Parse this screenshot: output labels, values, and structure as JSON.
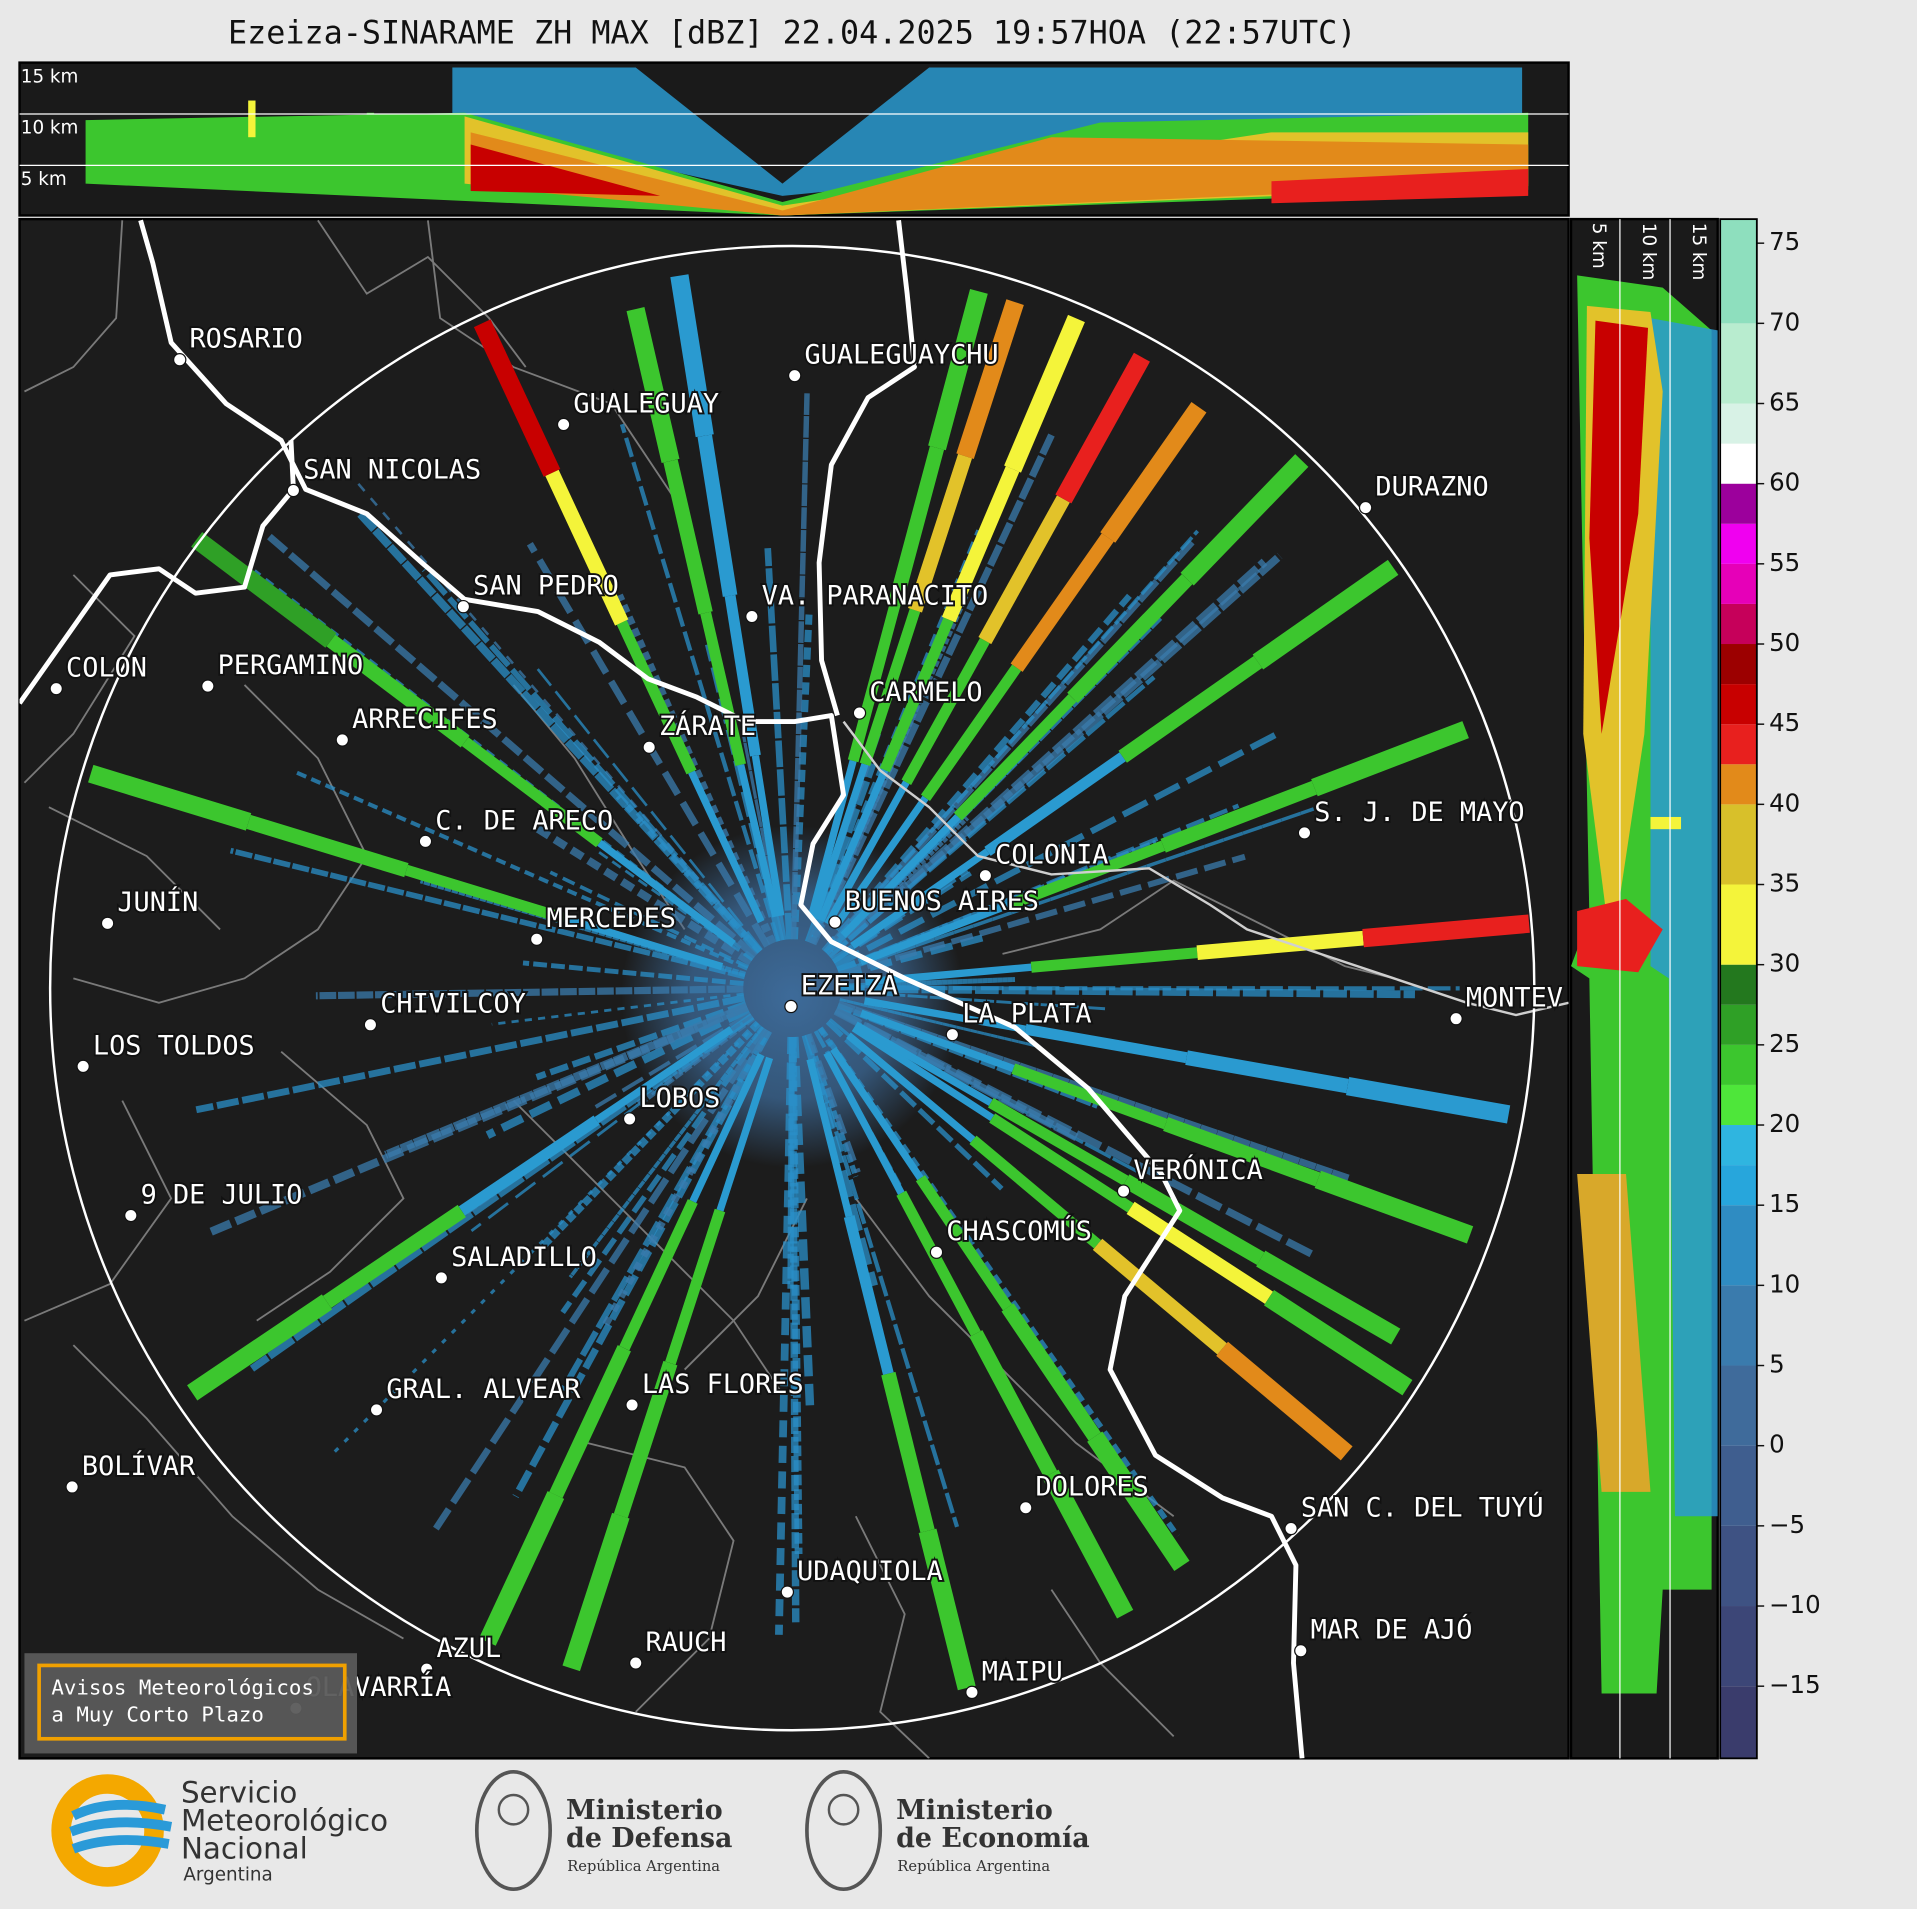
{
  "header": {
    "title": "Ezeiza-SINARAME ZH MAX [dBZ] 22.04.2025 19:57HOA (22:57UTC)"
  },
  "top_profile": {
    "height_labels": [
      "15 km",
      "10 km",
      "5 km"
    ]
  },
  "side_profile": {
    "height_labels": [
      "5 km",
      "10 km",
      "15 km"
    ]
  },
  "map": {
    "cities": [
      "ROSARIO",
      "GUALEGUAYCHU",
      "GUALEGUAY",
      "SAN NICOLAS",
      "DURAZNO",
      "SAN PEDRO",
      "VA. PARANACITO",
      "COLON",
      "PERGAMINO",
      "CARMELO",
      "ZÁRATE",
      "ARRECIFES",
      "S. J. DE MAYO",
      "C. DE ARECO",
      "COLONIA",
      "BUENOS AIRES",
      "JUNÍN",
      "MERCEDES",
      "EZEIZA",
      "MONTEV",
      "LA PLATA",
      "CHIVILCOY",
      "LOS TOLDOS",
      "LOBOS",
      "VERÓNICA",
      "9 DE JULIO",
      "CHASCOMÚS",
      "SALADILLO",
      "GRAL. ALVEAR",
      "LAS FLORES",
      "BOLÍVAR",
      "DOLORES",
      "SAN C. DEL TUYÚ",
      "UDAQUIOLA",
      "MAR DE AJÓ",
      "RAUCH",
      "AZUL",
      "OLAVARRÍA",
      "MAIPU"
    ]
  },
  "colorbar": {
    "lim": [
      -19.5,
      76.5
    ],
    "ticks": [
      75,
      70,
      65,
      60,
      55,
      50,
      45,
      40,
      35,
      30,
      25,
      20,
      15,
      10,
      5,
      0,
      {
        "value": -5,
        "label": "−5"
      },
      {
        "value": -10,
        "label": "−10"
      },
      {
        "value": -15,
        "label": "−15"
      }
    ],
    "colormap": [
      {
        "value": -20,
        "color": "#3a3c6c"
      },
      {
        "value": -15,
        "color": "#3c4677"
      },
      {
        "value": -10,
        "color": "#3e5283"
      },
      {
        "value": -5,
        "color": "#3f5e8f"
      },
      {
        "value": 0,
        "color": "#3f6b9b"
      },
      {
        "value": 5,
        "color": "#3a7bad"
      },
      {
        "value": 10,
        "color": "#2f8cc2"
      },
      {
        "value": 15,
        "color": "#27a6dc"
      },
      {
        "value": 17.5,
        "color": "#2fb5e0"
      },
      {
        "value": 20,
        "color": "#4ee63a"
      },
      {
        "value": 22.5,
        "color": "#3cc62e"
      },
      {
        "value": 25,
        "color": "#2fa026"
      },
      {
        "value": 27.5,
        "color": "#23781e"
      },
      {
        "value": 30,
        "color": "#f4f43a"
      },
      {
        "value": 35,
        "color": "#d8c02a"
      },
      {
        "value": 40,
        "color": "#e28a1a"
      },
      {
        "value": 42.5,
        "color": "#e8201e"
      },
      {
        "value": 45,
        "color": "#c80000"
      },
      {
        "value": 47.5,
        "color": "#9c0000"
      },
      {
        "value": 50,
        "color": "#c6005a"
      },
      {
        "value": 52.5,
        "color": "#e600b8"
      },
      {
        "value": 55,
        "color": "#f000f0"
      },
      {
        "value": 57.5,
        "color": "#9c009c"
      },
      {
        "value": 60,
        "color": "#ffffff"
      },
      {
        "value": 62.5,
        "color": "#d8f2e6"
      },
      {
        "value": 65,
        "color": "#b8eccf"
      },
      {
        "value": 70,
        "color": "#8edfbe"
      }
    ]
  },
  "notice": {
    "lines": [
      "Avisos Meteorológicos",
      "a Muy Corto Plazo"
    ]
  },
  "footer": {
    "smn": {
      "lines": [
        "Servicio",
        "Meteorológico",
        "Nacional"
      ],
      "country": "Argentina"
    },
    "defensa": {
      "lines": [
        "Ministerio",
        "de Defensa"
      ],
      "country": "República Argentina"
    },
    "economia": {
      "lines": [
        "Ministerio",
        "de Economía"
      ],
      "country": "República Argentina"
    }
  }
}
